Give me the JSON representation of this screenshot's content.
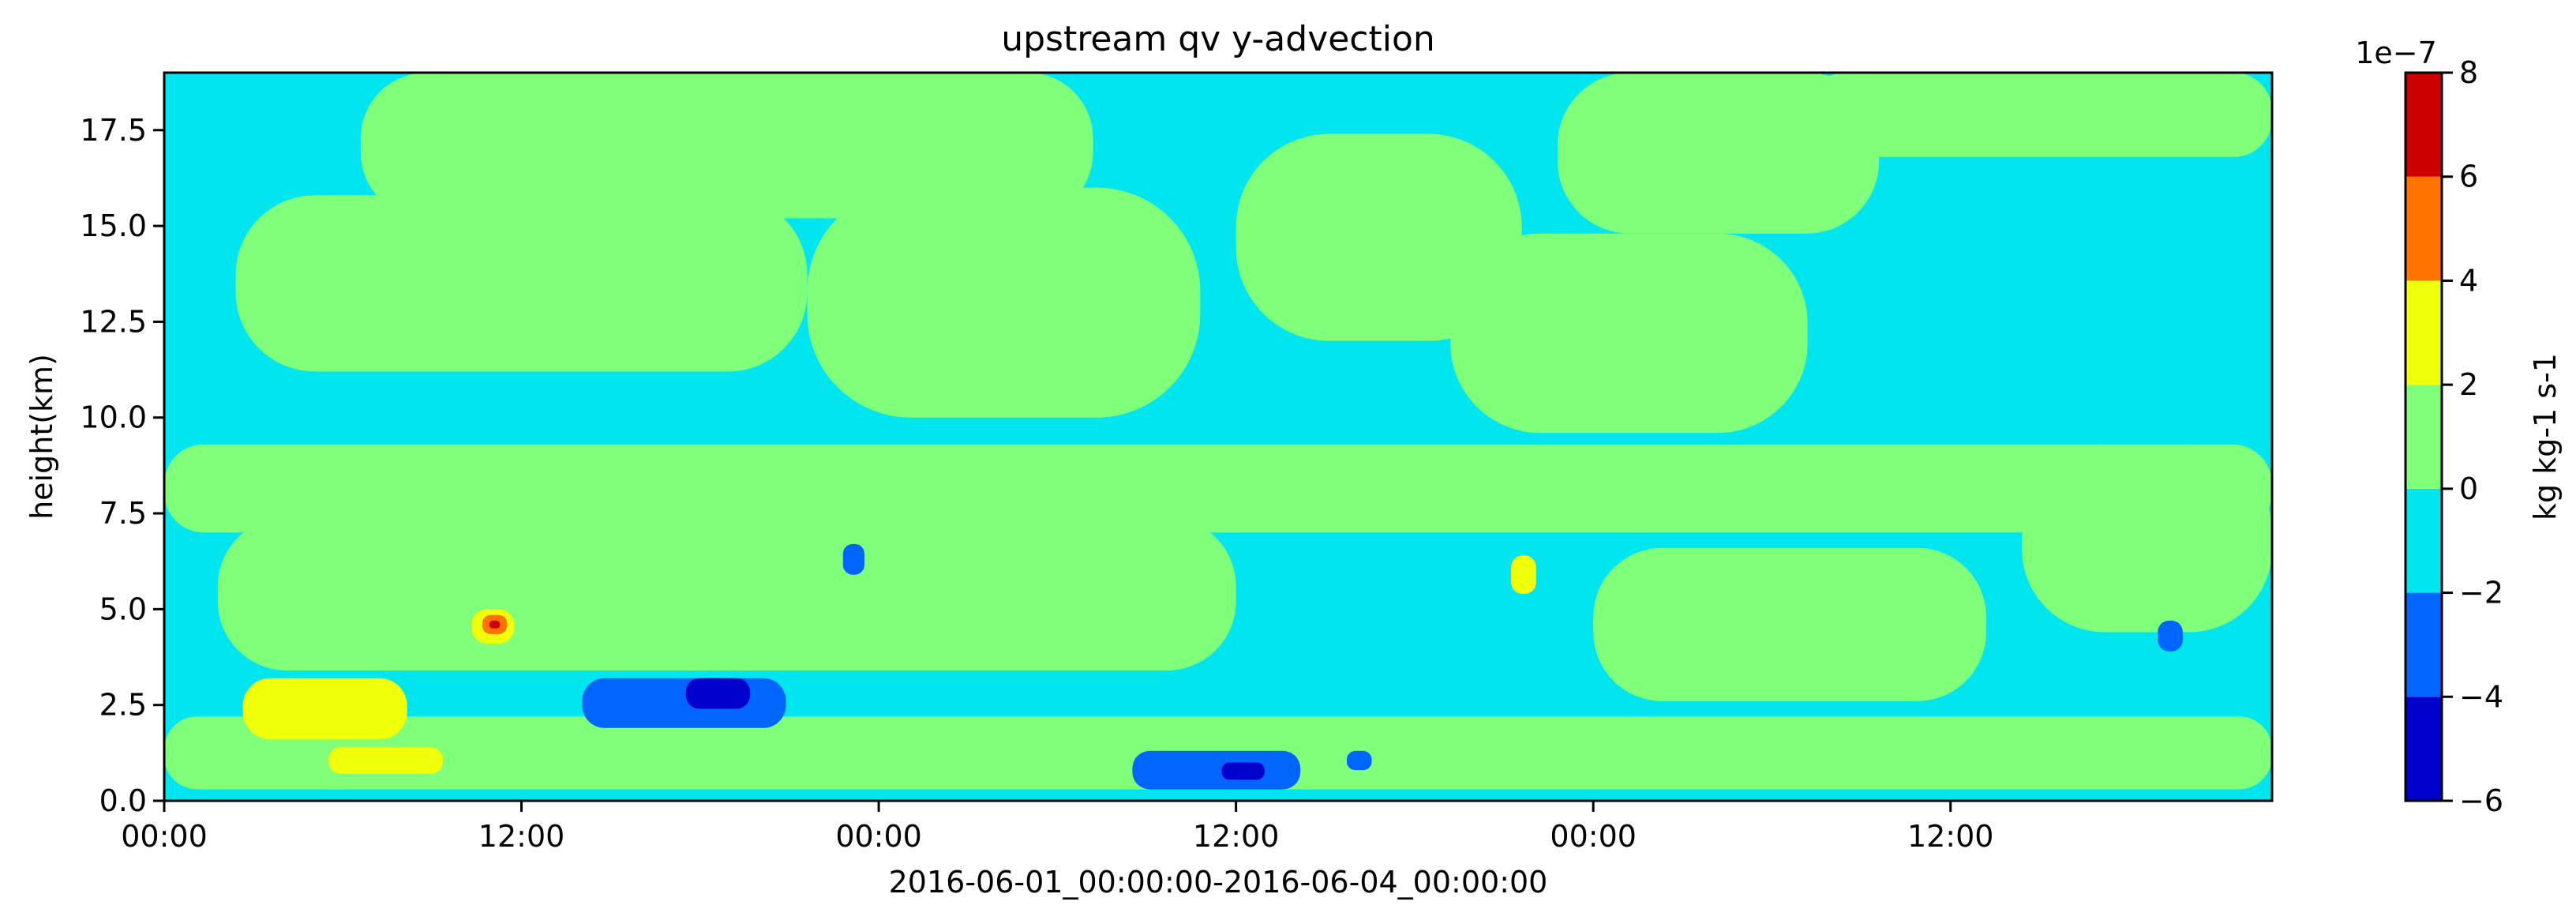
{
  "chart_data": {
    "type": "heatmap",
    "title": "upstream qv y-advection",
    "xlabel": "2016-06-01_00:00:00-2016-06-04_00:00:00",
    "ylabel": "height(km)",
    "x_range_hours": [
      0,
      59
    ],
    "ylim": [
      0,
      19
    ],
    "x_ticks": [
      {
        "hour": 0,
        "label": "00:00"
      },
      {
        "hour": 10,
        "label": "12:00"
      },
      {
        "hour": 20,
        "label": "00:00"
      },
      {
        "hour": 30,
        "label": "12:00"
      },
      {
        "hour": 40,
        "label": "00:00"
      },
      {
        "hour": 50,
        "label": "12:00"
      }
    ],
    "y_ticks": [
      {
        "value": 0,
        "label": "0.0"
      },
      {
        "value": 2.5,
        "label": "2.5"
      },
      {
        "value": 5,
        "label": "5.0"
      },
      {
        "value": 7.5,
        "label": "7.5"
      },
      {
        "value": 10,
        "label": "10.0"
      },
      {
        "value": 12.5,
        "label": "12.5"
      },
      {
        "value": 15,
        "label": "15.0"
      },
      {
        "value": 17.5,
        "label": "17.5"
      }
    ],
    "colorbar": {
      "label": "kg kg-1 s-1",
      "multiplier": "1e−7",
      "levels": [
        -6,
        -4,
        -2,
        0,
        2,
        4,
        6,
        8
      ],
      "tick_labels": [
        "−6",
        "−4",
        "−2",
        "0",
        "2",
        "4",
        "6",
        "8"
      ],
      "colors": [
        "#0000cd",
        "#0066ff",
        "#00e5ee",
        "#7fff7a",
        "#f0ff0a",
        "#ff7300",
        "#cd0000"
      ]
    },
    "base_band": "-2 to 0",
    "regions": [
      {
        "band": "0 to 2",
        "x_hours": [
          0,
          59
        ],
        "y_km": [
          0.3,
          2.2
        ]
      },
      {
        "band": "0 to 2",
        "x_hours": [
          0,
          59
        ],
        "y_km": [
          7.0,
          9.3
        ]
      },
      {
        "band": "0 to 2",
        "x_hours": [
          1.5,
          30
        ],
        "y_km": [
          3.4,
          7.4
        ]
      },
      {
        "band": "0 to 2",
        "x_hours": [
          2,
          18
        ],
        "y_km": [
          11.2,
          15.8
        ]
      },
      {
        "band": "0 to 2",
        "x_hours": [
          5.5,
          26
        ],
        "y_km": [
          15.2,
          19
        ]
      },
      {
        "band": "0 to 2",
        "x_hours": [
          18,
          29
        ],
        "y_km": [
          10,
          16
        ]
      },
      {
        "band": "0 to 2",
        "x_hours": [
          30,
          38
        ],
        "y_km": [
          12,
          17.4
        ]
      },
      {
        "band": "0 to 2",
        "x_hours": [
          36,
          46
        ],
        "y_km": [
          9.6,
          14.8
        ]
      },
      {
        "band": "0 to 2",
        "x_hours": [
          39,
          48
        ],
        "y_km": [
          14.8,
          19
        ]
      },
      {
        "band": "0 to 2",
        "x_hours": [
          46,
          59
        ],
        "y_km": [
          16.8,
          19
        ]
      },
      {
        "band": "0 to 2",
        "x_hours": [
          40,
          51
        ],
        "y_km": [
          2.6,
          6.6
        ]
      },
      {
        "band": "0 to 2",
        "x_hours": [
          52,
          59
        ],
        "y_km": [
          4.4,
          9.2
        ]
      },
      {
        "band": "2 to 4",
        "x_hours": [
          2.2,
          6.8
        ],
        "y_km": [
          1.6,
          3.2
        ]
      },
      {
        "band": "2 to 4",
        "x_hours": [
          4.6,
          7.8
        ],
        "y_km": [
          0.7,
          1.4
        ]
      },
      {
        "band": "2 to 4",
        "x_hours": [
          37.7,
          38.4
        ],
        "y_km": [
          5.4,
          6.4
        ]
      },
      {
        "band": "2 to 4",
        "x_hours": [
          8.6,
          9.8
        ],
        "y_km": [
          4.1,
          5.0
        ]
      },
      {
        "band": "4 to 6",
        "x_hours": [
          8.9,
          9.6
        ],
        "y_km": [
          4.35,
          4.85
        ]
      },
      {
        "band": "6 to 8",
        "x_hours": [
          9.1,
          9.4
        ],
        "y_km": [
          4.5,
          4.7
        ]
      },
      {
        "band": "-4 to -2",
        "x_hours": [
          11.7,
          17.4
        ],
        "y_km": [
          1.9,
          3.2
        ]
      },
      {
        "band": "-4 to -2",
        "x_hours": [
          27.1,
          31.8
        ],
        "y_km": [
          0.3,
          1.3
        ]
      },
      {
        "band": "-4 to -2",
        "x_hours": [
          19,
          19.6
        ],
        "y_km": [
          5.9,
          6.7
        ]
      },
      {
        "band": "-4 to -2",
        "x_hours": [
          55.8,
          56.5
        ],
        "y_km": [
          3.9,
          4.7
        ]
      },
      {
        "band": "-4 to -2",
        "x_hours": [
          33.1,
          33.8
        ],
        "y_km": [
          0.8,
          1.3
        ]
      },
      {
        "band": "-6 to -4",
        "x_hours": [
          14.6,
          16.4
        ],
        "y_km": [
          2.4,
          3.2
        ]
      },
      {
        "band": "-6 to -4",
        "x_hours": [
          29.6,
          30.8
        ],
        "y_km": [
          0.55,
          1.0
        ]
      }
    ]
  }
}
